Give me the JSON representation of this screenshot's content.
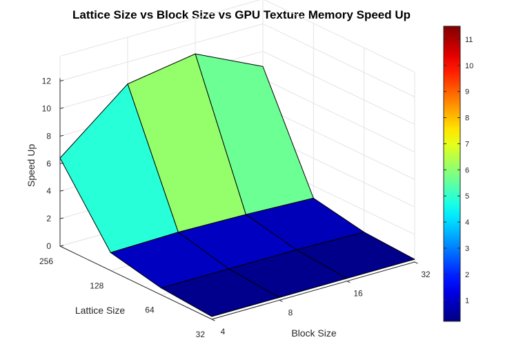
{
  "chart_data": {
    "type": "surface",
    "title": "Lattice Size vs Block Size vs GPU Texture Memory Speed Up",
    "xlabel": "Block Size",
    "ylabel": "Lattice Size",
    "zlabel": "Speed Up",
    "x_ticks": [
      "4",
      "8",
      "16",
      "32"
    ],
    "y_ticks": [
      "32",
      "64",
      "128",
      "256"
    ],
    "z_ticks": [
      "0",
      "2",
      "4",
      "6",
      "8",
      "10",
      "12"
    ],
    "zlim": [
      0,
      12
    ],
    "grid": true,
    "colormap": "jet",
    "colorbar": {
      "range": [
        0.2,
        11.5
      ],
      "ticks": [
        "1",
        "2",
        "3",
        "4",
        "5",
        "6",
        "7",
        "8",
        "9",
        "10",
        "11"
      ],
      "placement": "right"
    },
    "z_values": [
      [
        0.2,
        0.2,
        0.2,
        0.2
      ],
      [
        0.5,
        0.5,
        0.5,
        0.4
      ],
      [
        1.3,
        1.4,
        1.3,
        1.1
      ],
      [
        6.4,
        10.4,
        11.2,
        8.9
      ]
    ]
  }
}
